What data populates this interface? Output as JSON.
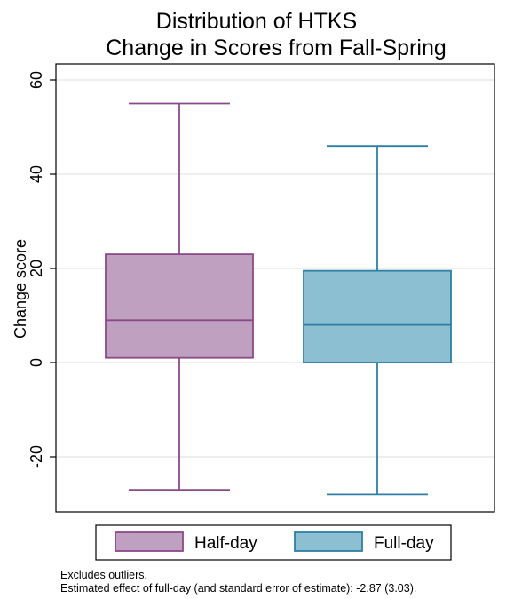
{
  "chart_data": {
    "type": "box",
    "title": [
      "Distribution of HTKS",
      "Change in Scores from Fall-Spring"
    ],
    "ylabel": "Change score",
    "ylim": [
      -32,
      64
    ],
    "yticks": [
      -20,
      0,
      20,
      40,
      60
    ],
    "grid": true,
    "legend_position": "bottom",
    "series": [
      {
        "name": "Half-day",
        "min": -27,
        "q1": 1,
        "median": 9,
        "q3": 23,
        "max": 55,
        "fill": "#c0a0c0",
        "stroke": "#8a4a88"
      },
      {
        "name": "Full-day",
        "min": -28,
        "q1": 0,
        "median": 8,
        "q3": 19.5,
        "max": 46,
        "fill": "#8dbfd3",
        "stroke": "#2f7fa3"
      }
    ]
  },
  "notes": [
    "Excludes outliers.",
    "Estimated effect of full-day (and standard error of estimate): -2.87 (3.03)."
  ]
}
